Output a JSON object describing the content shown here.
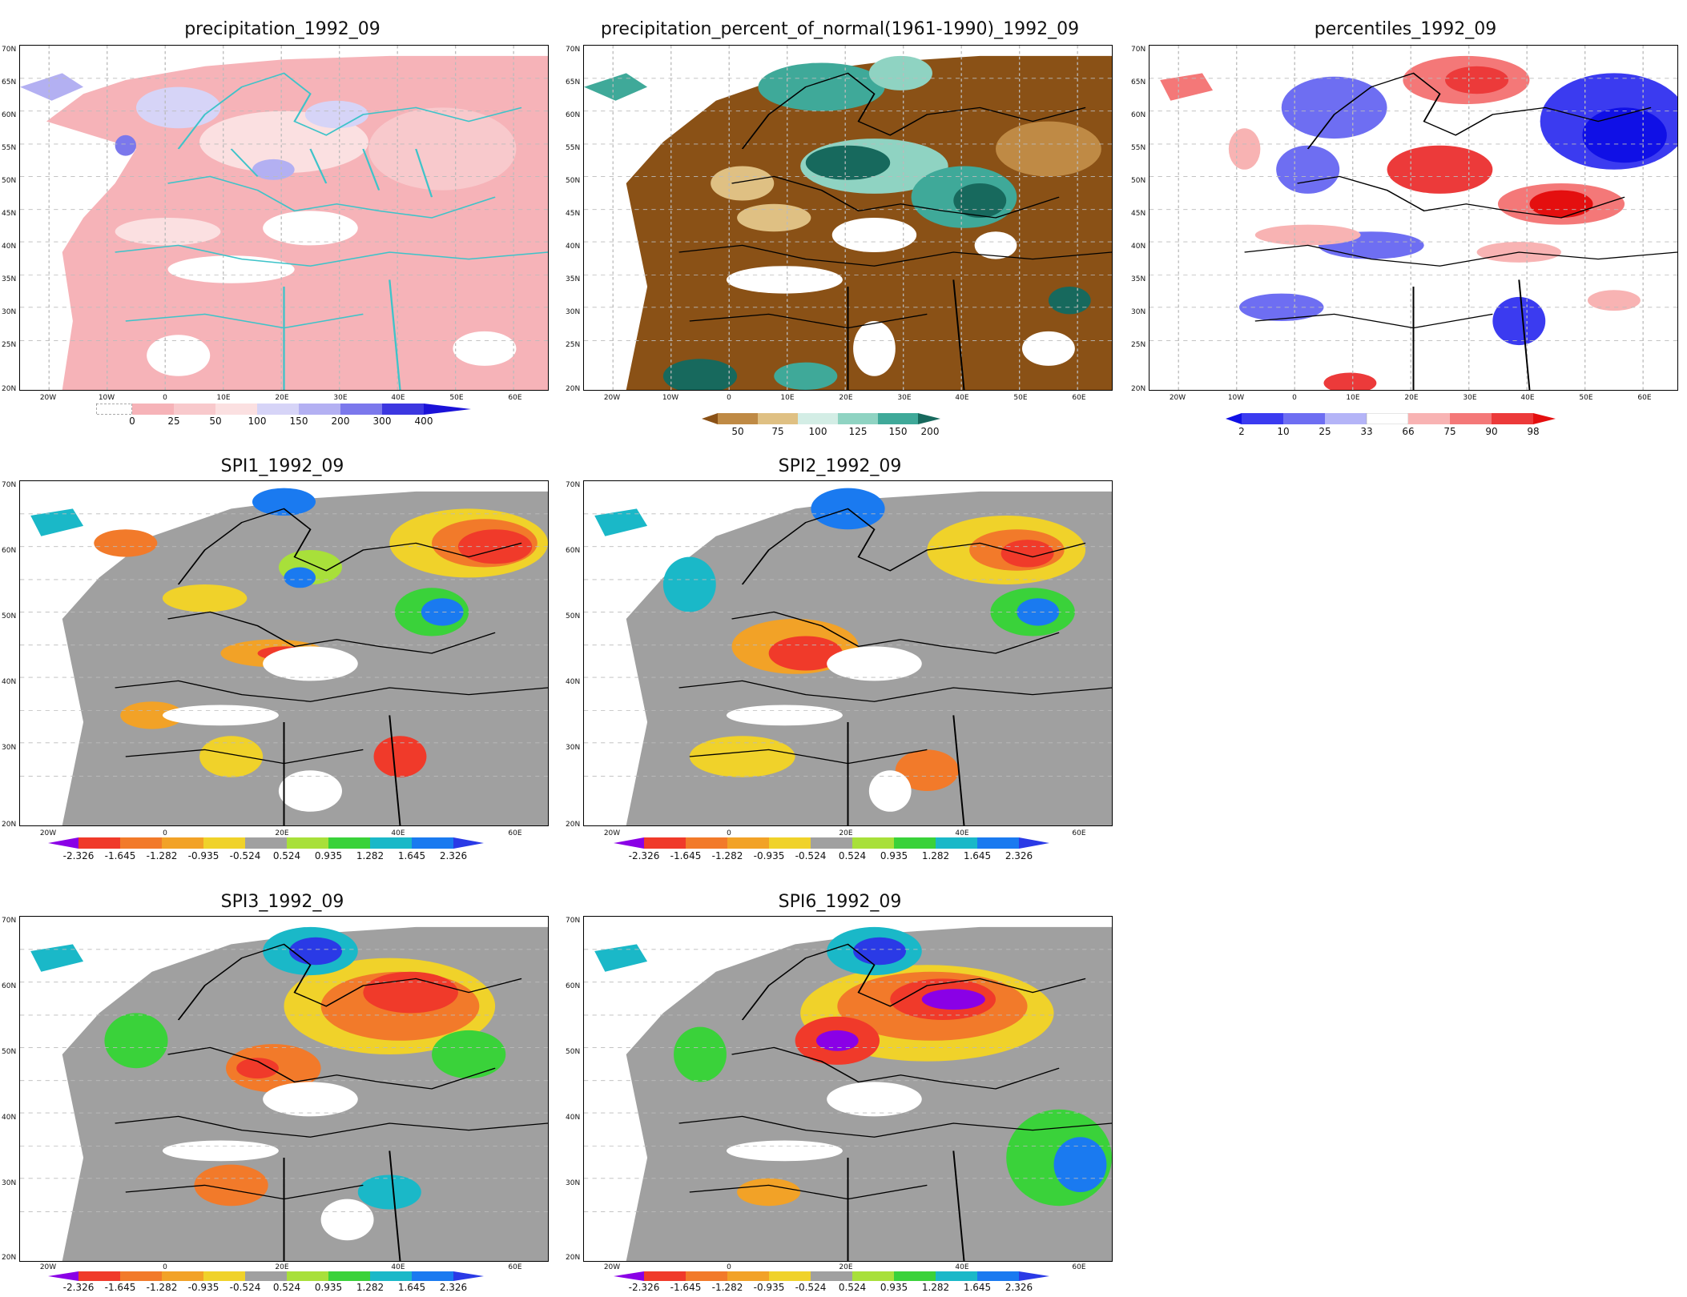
{
  "lat_labels": [
    "70N",
    "65N",
    "60N",
    "55N",
    "50N",
    "45N",
    "40N",
    "35N",
    "30N",
    "25N",
    "20N"
  ],
  "lon_labels": [
    "20W",
    "10W",
    "0",
    "10E",
    "20E",
    "30E",
    "40E",
    "50E",
    "60E"
  ],
  "panels": [
    {
      "id": "precip",
      "title": "precipitation_1992_09",
      "colorbar": {
        "labels": [
          "0",
          "25",
          "50",
          "100",
          "150",
          "200",
          "300",
          "400"
        ],
        "colors": [
          "#ffffff",
          "#f6b3b8",
          "#f8c9cc",
          "#fbe0e1",
          "#d6d4f7",
          "#b3b0f2",
          "#7b78ec",
          "#3c37e0",
          "#1a12d8"
        ]
      }
    },
    {
      "id": "pct",
      "title": "precipitation_percent_of_normal(1961-1990)_1992_09",
      "colorbar": {
        "labels": [
          "50",
          "75",
          "100",
          "125",
          "150",
          "200"
        ],
        "colors": [
          "#8a5116",
          "#bf8a45",
          "#dfc083",
          "#d3ede5",
          "#8fd3c2",
          "#3fa999",
          "#17695d"
        ]
      }
    },
    {
      "id": "perc",
      "title": "percentiles_1992_09",
      "colorbar": {
        "labels": [
          "2",
          "10",
          "25",
          "33",
          "66",
          "75",
          "90",
          "98"
        ],
        "colors": [
          "#1010e6",
          "#3b3bf0",
          "#6e6ef2",
          "#b4b4f7",
          "#ffffff",
          "#f8b3b3",
          "#f47878",
          "#ec3a3a",
          "#e40f0f"
        ]
      }
    },
    {
      "id": "spi1",
      "title": "SPI1_1992_09",
      "colorbar": {
        "labels": [
          "-2.326",
          "-1.645",
          "-1.282",
          "-0.935",
          "-0.524",
          "0.524",
          "0.935",
          "1.282",
          "1.645",
          "2.326"
        ],
        "colors": [
          "#8a00e6",
          "#f03a2a",
          "#f27a2a",
          "#f2a227",
          "#f0d22a",
          "#a0a0a0",
          "#a8e03a",
          "#3ad23a",
          "#1ab8c8",
          "#1a7af0",
          "#2a3ae6"
        ]
      }
    },
    {
      "id": "spi2",
      "title": "SPI2_1992_09",
      "colorbar": {
        "labels": [
          "-2.326",
          "-1.645",
          "-1.282",
          "-0.935",
          "-0.524",
          "0.524",
          "0.935",
          "1.282",
          "1.645",
          "2.326"
        ],
        "colors": [
          "#8a00e6",
          "#f03a2a",
          "#f27a2a",
          "#f2a227",
          "#f0d22a",
          "#a0a0a0",
          "#a8e03a",
          "#3ad23a",
          "#1ab8c8",
          "#1a7af0",
          "#2a3ae6"
        ]
      }
    },
    {
      "id": "spi3",
      "title": "SPI3_1992_09",
      "colorbar": {
        "labels": [
          "-2.326",
          "-1.645",
          "-1.282",
          "-0.935",
          "-0.524",
          "0.524",
          "0.935",
          "1.282",
          "1.645",
          "2.326"
        ],
        "colors": [
          "#8a00e6",
          "#f03a2a",
          "#f27a2a",
          "#f2a227",
          "#f0d22a",
          "#a0a0a0",
          "#a8e03a",
          "#3ad23a",
          "#1ab8c8",
          "#1a7af0",
          "#2a3ae6"
        ]
      }
    },
    {
      "id": "spi6",
      "title": "SPI6_1992_09",
      "colorbar": {
        "labels": [
          "-2.326",
          "-1.645",
          "-1.282",
          "-0.935",
          "-0.524",
          "0.524",
          "0.935",
          "1.282",
          "1.645",
          "2.326"
        ],
        "colors": [
          "#8a00e6",
          "#f03a2a",
          "#f27a2a",
          "#f2a227",
          "#f0d22a",
          "#a0a0a0",
          "#a8e03a",
          "#3ad23a",
          "#1ab8c8",
          "#1a7af0",
          "#2a3ae6"
        ]
      }
    }
  ]
}
